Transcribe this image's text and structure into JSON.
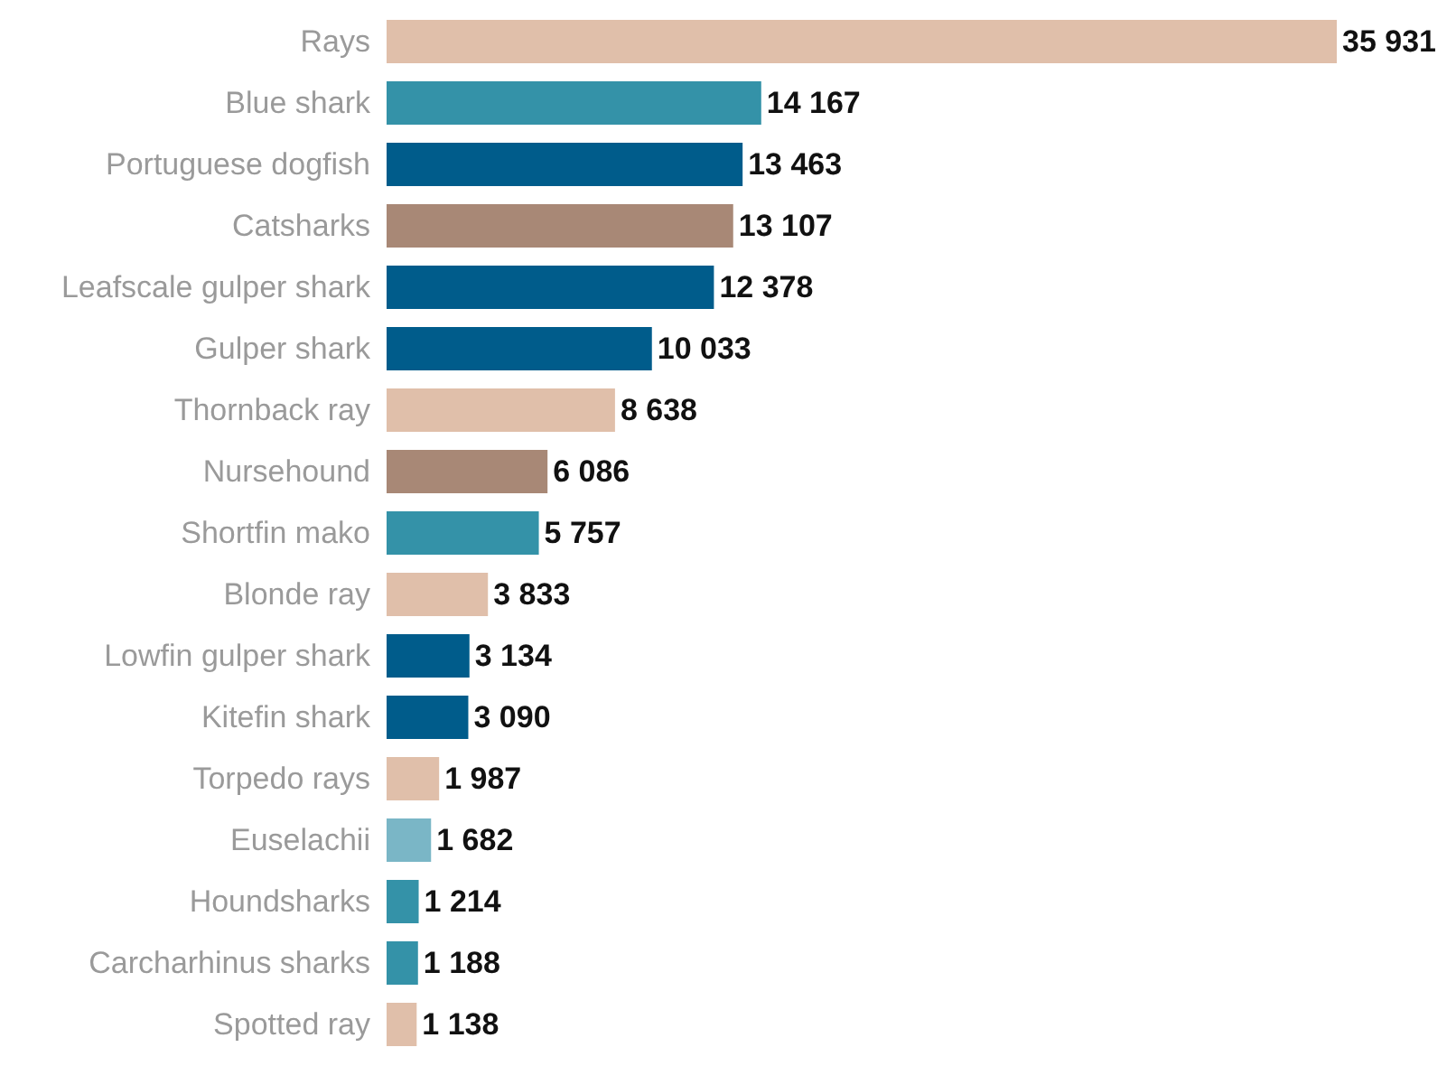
{
  "chart_data": {
    "type": "bar",
    "orientation": "horizontal",
    "categories": [
      "Rays",
      "Blue shark",
      "Portuguese dogfish",
      "Catsharks",
      "Leafscale gulper shark",
      "Gulper shark",
      "Thornback ray",
      "Nursehound",
      "Shortfin mako",
      "Blonde ray",
      "Lowfin gulper shark",
      "Kitefin shark",
      "Torpedo rays",
      "Euselachii",
      "Houndsharks",
      "Carcharhinus sharks",
      "Spotted ray"
    ],
    "values": [
      35931,
      14167,
      13463,
      13107,
      12378,
      10033,
      8638,
      6086,
      5757,
      3833,
      3134,
      3090,
      1987,
      1682,
      1214,
      1188,
      1138
    ],
    "value_labels": [
      "35 931",
      "14 167",
      "13 463",
      "13 107",
      "12 378",
      "10 033",
      "8 638",
      "6 086",
      "5 757",
      "3 833",
      "3 134",
      "3 090",
      "1 987",
      "1 682",
      "1 214",
      "1 188",
      "1 138"
    ],
    "colors": [
      "#e0bfaa",
      "#3492a8",
      "#005c8b",
      "#a88876",
      "#005c8b",
      "#005c8b",
      "#e0bfaa",
      "#a88876",
      "#3492a8",
      "#e0bfaa",
      "#005c8b",
      "#005c8b",
      "#e0bfaa",
      "#7ab6c6",
      "#3492a8",
      "#3492a8",
      "#e0bfaa"
    ]
  }
}
